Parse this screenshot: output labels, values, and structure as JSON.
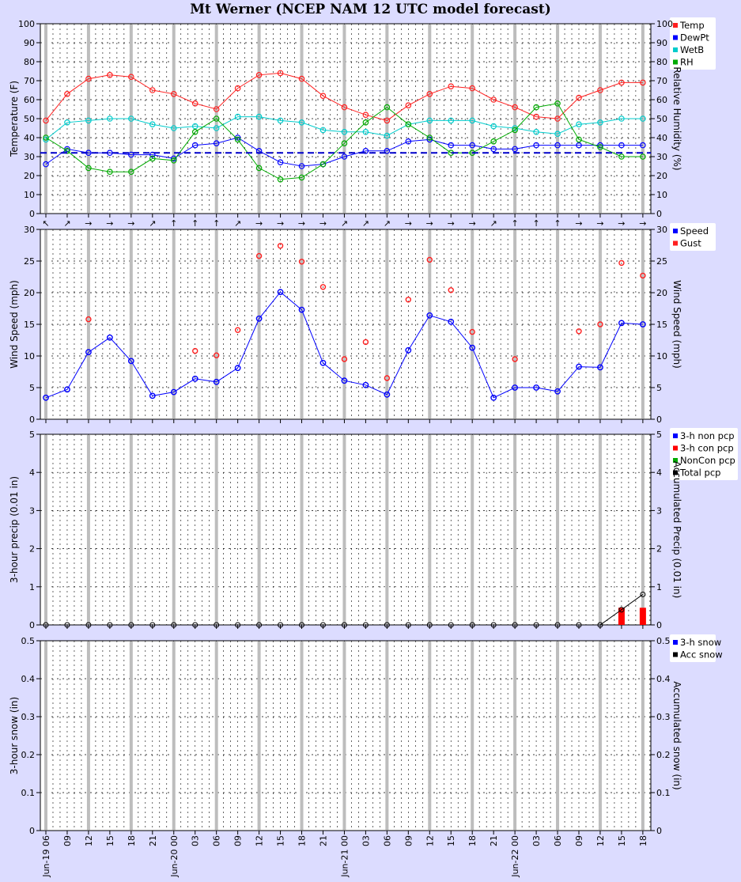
{
  "title": "Mt Werner (NCEP NAM 12 UTC model forecast)",
  "colors": {
    "background": "#dcdcff",
    "temp": "#ff2020",
    "dewpt": "#0000ff",
    "wetb": "#00cccc",
    "rh": "#00aa00",
    "gust": "#ff2020",
    "speed": "#0000ff",
    "non_pcp": "#0000ff",
    "con_pcp": "#ff0000",
    "noncon_pcp": "#00aa00",
    "total_pcp": "#000000"
  },
  "x_axis": {
    "tick_labels": [
      "06",
      "09",
      "12",
      "15",
      "18",
      "21",
      "00",
      "03",
      "06",
      "09",
      "12",
      "15",
      "18",
      "21",
      "00",
      "03",
      "06",
      "09",
      "12",
      "15",
      "18",
      "21",
      "00",
      "03",
      "06",
      "09",
      "12",
      "15",
      "18"
    ],
    "date_labels": [
      {
        "index": 0,
        "label": "Jun-19"
      },
      {
        "index": 6,
        "label": "Jun-20"
      },
      {
        "index": 14,
        "label": "Jun-21"
      },
      {
        "index": 22,
        "label": "Jun-22"
      }
    ]
  },
  "chart_data": [
    {
      "type": "line",
      "left_ylabel": "Temperature (F)",
      "right_ylabel": "Relative Humidity (%)",
      "ylim": [
        0,
        100
      ],
      "yticks": [
        "0",
        "10",
        "20",
        "30",
        "40",
        "50",
        "60",
        "70",
        "80",
        "90",
        "100"
      ],
      "freezing_line": 32,
      "series": [
        {
          "name": "Temp",
          "values": [
            49,
            63,
            71,
            73,
            72,
            65,
            63,
            58,
            55,
            66,
            73,
            74,
            71,
            62,
            56,
            52,
            49,
            57,
            63,
            67,
            66,
            60,
            56,
            51,
            50,
            61,
            65,
            69,
            69
          ]
        },
        {
          "name": "DewPt",
          "values": [
            26,
            34,
            32,
            32,
            31,
            31,
            29,
            36,
            37,
            40,
            33,
            27,
            25,
            26,
            30,
            33,
            33,
            38,
            39,
            36,
            36,
            34,
            34,
            36,
            36,
            36,
            36,
            36,
            36
          ]
        },
        {
          "name": "WetB",
          "values": [
            39,
            48,
            49,
            50,
            50,
            47,
            45,
            46,
            45,
            51,
            51,
            49,
            48,
            44,
            43,
            43,
            41,
            47,
            49,
            49,
            49,
            46,
            45,
            43,
            42,
            47,
            48,
            50,
            50
          ]
        },
        {
          "name": "RH",
          "values": [
            40,
            33,
            24,
            22,
            22,
            29,
            28,
            43,
            50,
            39,
            24,
            18,
            19,
            26,
            37,
            48,
            56,
            47,
            40,
            32,
            32,
            38,
            44,
            56,
            58,
            39,
            35,
            30,
            30
          ]
        }
      ],
      "wind_arrows": [
        "↖",
        "↗",
        "→",
        "→",
        "→",
        "↗",
        "↑",
        "↑",
        "↑",
        "↗",
        "→",
        "→",
        "→",
        "→",
        "↗",
        "↗",
        "↗",
        "→",
        "→",
        "→",
        "→",
        "↗",
        "↑",
        "↑",
        "↑",
        "→",
        "→",
        "→",
        "→"
      ],
      "legend": [
        "Temp",
        "DewPt",
        "WetB",
        "RH"
      ]
    },
    {
      "type": "line",
      "left_ylabel": "Wind Speed (mph)",
      "right_ylabel": "Wind Speed (mph)",
      "ylim": [
        0,
        30
      ],
      "yticks": [
        "0",
        "5",
        "10",
        "15",
        "20",
        "25",
        "30"
      ],
      "series": [
        {
          "name": "Speed",
          "values": [
            3.4,
            4.7,
            10.6,
            12.9,
            9.2,
            3.7,
            4.3,
            6.4,
            5.9,
            8.1,
            15.9,
            20.1,
            17.3,
            8.9,
            6.1,
            5.4,
            3.9,
            10.9,
            16.4,
            15.4,
            11.3,
            3.4,
            5.0,
            5.0,
            4.4,
            8.3,
            8.2,
            15.2,
            15.0
          ]
        },
        {
          "name": "Gust",
          "values": [
            null,
            null,
            15.8,
            null,
            null,
            null,
            null,
            10.8,
            10.1,
            14.1,
            25.8,
            27.4,
            24.9,
            20.9,
            9.5,
            12.2,
            6.5,
            18.9,
            25.2,
            20.4,
            13.8,
            null,
            9.5,
            null,
            null,
            13.9,
            15.0,
            24.7,
            22.7
          ]
        }
      ],
      "legend": [
        "Speed",
        "Gust"
      ]
    },
    {
      "type": "bar",
      "left_ylabel": "3-hour precip (0.01 in)",
      "right_ylabel": "Accumulated Precip (0.01 in)",
      "ylim": [
        0,
        5
      ],
      "yticks": [
        "0",
        "1",
        "2",
        "3",
        "4",
        "5"
      ],
      "series": [
        {
          "name": "3-h non pcp",
          "values": [
            0,
            0,
            0,
            0,
            0,
            0,
            0,
            0,
            0,
            0,
            0,
            0,
            0,
            0,
            0,
            0,
            0,
            0,
            0,
            0,
            0,
            0,
            0,
            0,
            0,
            0,
            0,
            0,
            0
          ]
        },
        {
          "name": "3-h con pcp",
          "values": [
            0,
            0,
            0,
            0,
            0,
            0,
            0,
            0,
            0,
            0,
            0,
            0,
            0,
            0,
            0,
            0,
            0,
            0,
            0,
            0,
            0,
            0,
            0,
            0,
            0,
            0,
            0,
            0.45,
            0.45
          ]
        },
        {
          "name": "NonCon pcp",
          "values": [
            0,
            0,
            0,
            0,
            0,
            0,
            0,
            0,
            0,
            0,
            0,
            0,
            0,
            0,
            0,
            0,
            0,
            0,
            0,
            0,
            0,
            0,
            0,
            0,
            0,
            0,
            0,
            0,
            0
          ]
        },
        {
          "name": "Total pcp",
          "values": [
            0,
            0,
            0,
            0,
            0,
            0,
            0,
            0,
            0,
            0,
            0,
            0,
            0,
            0,
            0,
            0,
            0,
            0,
            0,
            0,
            0,
            0,
            0,
            0,
            0,
            0,
            0,
            0.4,
            0.8
          ]
        }
      ],
      "legend": [
        "3-h non pcp",
        "3-h con pcp",
        "NonCon pcp",
        "Total pcp"
      ]
    },
    {
      "type": "bar",
      "left_ylabel": "3-hour snow (in)",
      "right_ylabel": "Accumulated snow (in)",
      "ylim": [
        0,
        0.5
      ],
      "yticks": [
        "0",
        "0.1",
        "0.2",
        "0.3",
        "0.4",
        "0.5"
      ],
      "series": [
        {
          "name": "3-h snow",
          "values": [
            0,
            0,
            0,
            0,
            0,
            0,
            0,
            0,
            0,
            0,
            0,
            0,
            0,
            0,
            0,
            0,
            0,
            0,
            0,
            0,
            0,
            0,
            0,
            0,
            0,
            0,
            0,
            0,
            0
          ]
        },
        {
          "name": "Acc snow",
          "values": [
            0,
            0,
            0,
            0,
            0,
            0,
            0,
            0,
            0,
            0,
            0,
            0,
            0,
            0,
            0,
            0,
            0,
            0,
            0,
            0,
            0,
            0,
            0,
            0,
            0,
            0,
            0,
            0,
            0
          ]
        }
      ],
      "legend": [
        "3-h snow",
        "Acc snow"
      ]
    }
  ]
}
